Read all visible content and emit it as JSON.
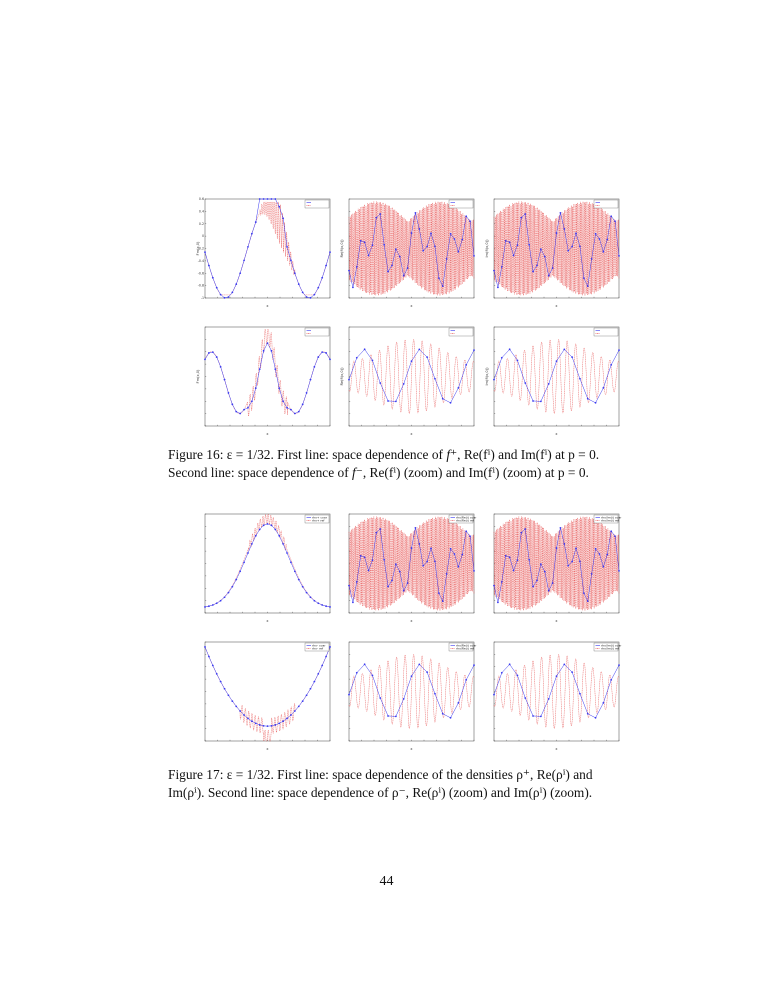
{
  "figure16": {
    "caption": "Figure 16: ε = 1/32. First line: space dependence of f⁺, Re(fⁱ) and Im(fⁱ) at p = 0. Second line: space dependence of f⁻, Re(fⁱ) (zoom) and Im(fⁱ) (zoom) at p = 0.",
    "caption_parts": {
      "label": "Figure 16:",
      "p1": "ε = 1/32. First line: space dependence of ",
      "fplus": "f⁺",
      "p2": ", Re(fⁱ) and Im(fⁱ) at",
      "p3": "p = 0. Second line: space dependence of ",
      "fminus": "f⁻",
      "p4": ", Re(fⁱ) (zoom) and Im(fⁱ) (zoom)",
      "p5": "at p = 0."
    }
  },
  "figure17": {
    "caption_parts": {
      "label": "Figure 17:",
      "p1": "ε = 1/32. First line: space dependence of the densities ρ⁺, Re(ρⁱ)",
      "p2": "and Im(ρⁱ). Second line: space dependence of ρ⁻, Re(ρⁱ) (zoom) and Im(ρⁱ)",
      "p3": "(zoom)."
    }
  },
  "page_number": "44",
  "colors": {
    "series_blue": "#3a3af0",
    "series_red": "#e02424",
    "axis": "#444444"
  },
  "chart_data": [
    {
      "id": "fig16-row1-col1",
      "type": "line",
      "xlabel": "x",
      "ylabel": "Fm(x,0)",
      "xlim": [
        -5,
        5
      ],
      "ylim": [
        -1,
        0.6
      ],
      "yticks": [
        "0.6",
        "0.4",
        "0.2",
        "0",
        "-0.2",
        "-0.4",
        "-0.6",
        "-0.8",
        "-1"
      ],
      "legend": [
        "",
        ""
      ],
      "legend_position": "top-right",
      "series": [
        {
          "name": "",
          "style": "blue-markers",
          "fn": "fplus_coarse"
        },
        {
          "name": "",
          "style": "red-dashed",
          "fn": "fplus_fine"
        }
      ]
    },
    {
      "id": "fig16-row1-col2",
      "type": "line",
      "xlabel": "x",
      "ylabel": "Re(fi(x,0))",
      "xlim": [
        -5,
        5
      ],
      "ylim": [
        -1,
        1
      ],
      "legend": [
        "",
        ""
      ],
      "legend_position": "top-right",
      "series": [
        {
          "name": "",
          "style": "blue-markers",
          "fn": "osc_coarse"
        },
        {
          "name": "",
          "style": "red-dashed",
          "fn": "osc_fine_two_humps"
        }
      ]
    },
    {
      "id": "fig16-row1-col3",
      "type": "line",
      "xlabel": "x",
      "ylabel": "Im(fi(x,0))",
      "xlim": [
        -5,
        5
      ],
      "ylim": [
        -1,
        1
      ],
      "legend": [
        "",
        ""
      ],
      "legend_position": "top-right",
      "series": [
        {
          "name": "",
          "style": "blue-markers",
          "fn": "osc_coarse"
        },
        {
          "name": "",
          "style": "red-dashed",
          "fn": "osc_fine_two_humps"
        }
      ]
    },
    {
      "id": "fig16-row2-col1",
      "type": "line",
      "xlabel": "x",
      "ylabel": "Fm(x,0)",
      "xlim": [
        -5,
        5
      ],
      "ylim": [
        0,
        0.8
      ],
      "legend": [
        "",
        ""
      ],
      "legend_position": "top-right",
      "series": [
        {
          "name": "",
          "style": "blue-markers",
          "fn": "fminus_coarse"
        },
        {
          "name": "",
          "style": "red-dashed",
          "fn": "fminus_fine"
        }
      ]
    },
    {
      "id": "fig16-row2-col2",
      "type": "line",
      "xlabel": "x",
      "ylabel": "Re(fi(x,0))",
      "xlim": [
        -1,
        1
      ],
      "ylim": [
        -1,
        1
      ],
      "legend": [
        "",
        ""
      ],
      "legend_position": "top-right",
      "series": [
        {
          "name": "",
          "style": "blue-markers",
          "fn": "zoom_coarse"
        },
        {
          "name": "",
          "style": "red-dashed",
          "fn": "zoom_fine"
        }
      ]
    },
    {
      "id": "fig16-row2-col3",
      "type": "line",
      "xlabel": "x",
      "ylabel": "Im(fi(x,0))",
      "xlim": [
        -1,
        1
      ],
      "ylim": [
        -1,
        1
      ],
      "legend": [
        "",
        ""
      ],
      "legend_position": "top-right",
      "series": [
        {
          "name": "",
          "style": "blue-markers",
          "fn": "zoom_coarse"
        },
        {
          "name": "",
          "style": "red-dashed",
          "fn": "zoom_fine"
        }
      ]
    },
    {
      "id": "fig17-row1-col1",
      "type": "line",
      "xlabel": "x",
      "ylabel": "",
      "xlim": [
        -5,
        5
      ],
      "ylim": [
        0.5,
        1.5
      ],
      "legend": [
        "rho+ coar",
        "rho+ ref"
      ],
      "legend_position": "top-right",
      "series": [
        {
          "name": "rho+ coar",
          "style": "blue-markers",
          "fn": "rhoplus_coarse"
        },
        {
          "name": "rho+ ref",
          "style": "red-dashed",
          "fn": "rhoplus_fine"
        }
      ]
    },
    {
      "id": "fig17-row1-col2",
      "type": "line",
      "xlabel": "x",
      "ylabel": "",
      "xlim": [
        -5,
        5
      ],
      "ylim": [
        -1,
        1
      ],
      "legend": [
        "rho/Re(i) coar",
        "rho/Re(i) ref"
      ],
      "legend_position": "top-right",
      "series": [
        {
          "name": "rho/Re(i) coar",
          "style": "blue-markers",
          "fn": "osc_coarse"
        },
        {
          "name": "rho/Re(i) ref",
          "style": "red-dashed",
          "fn": "osc_fine_two_humps"
        }
      ]
    },
    {
      "id": "fig17-row1-col3",
      "type": "line",
      "xlabel": "x",
      "ylabel": "",
      "xlim": [
        -5,
        5
      ],
      "ylim": [
        -1,
        1
      ],
      "legend": [
        "rho/Im(i) coar",
        "rho/Im(i) ref"
      ],
      "legend_position": "top-right",
      "series": [
        {
          "name": "rho/Im(i) coar",
          "style": "blue-markers",
          "fn": "osc_coarse"
        },
        {
          "name": "rho/Im(i) ref",
          "style": "red-dashed",
          "fn": "osc_fine_two_humps"
        }
      ]
    },
    {
      "id": "fig17-row2-col1",
      "type": "line",
      "xlabel": "x",
      "ylabel": "",
      "xlim": [
        -5,
        5
      ],
      "ylim": [
        0.6,
        1.6
      ],
      "legend": [
        "rho- coar",
        "rho- ref"
      ],
      "legend_position": "top-right",
      "series": [
        {
          "name": "rho- coar",
          "style": "blue-markers",
          "fn": "rhominus_coarse"
        },
        {
          "name": "rho- ref",
          "style": "red-dashed",
          "fn": "rhominus_fine"
        }
      ]
    },
    {
      "id": "fig17-row2-col2",
      "type": "line",
      "xlabel": "x",
      "ylabel": "",
      "xlim": [
        -1,
        1
      ],
      "ylim": [
        -1,
        1
      ],
      "legend": [
        "rho/Re(i) coar",
        "rho/Re(i) ref"
      ],
      "legend_position": "top-right",
      "series": [
        {
          "name": "rho/Re(i) coar",
          "style": "blue-markers",
          "fn": "zoom_coarse"
        },
        {
          "name": "rho/Re(i) ref",
          "style": "red-dashed",
          "fn": "zoom_fine"
        }
      ]
    },
    {
      "id": "fig17-row2-col3",
      "type": "line",
      "xlabel": "x",
      "ylabel": "",
      "xlim": [
        -1,
        1
      ],
      "ylim": [
        -1,
        1
      ],
      "legend": [
        "rho/Im(i) coar",
        "rho/Im(i) ref"
      ],
      "legend_position": "top-right",
      "series": [
        {
          "name": "rho/Im(i) coar",
          "style": "blue-markers",
          "fn": "zoom_coarse"
        },
        {
          "name": "rho/Im(i) ref",
          "style": "red-dashed",
          "fn": "zoom_fine"
        }
      ]
    }
  ]
}
